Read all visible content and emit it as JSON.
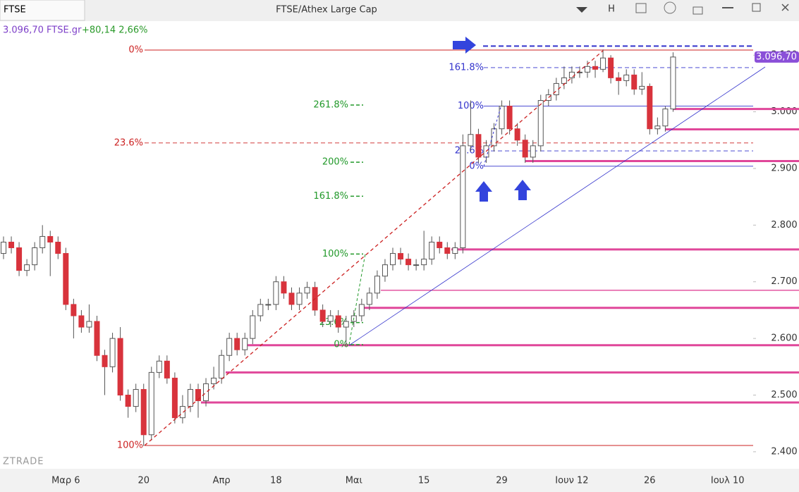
{
  "toolbar": {
    "symbol": "FTSE",
    "title": "FTSE/Athex Large Cap",
    "mode": "H"
  },
  "quote": {
    "price": "3.096,70 FTSE.gr",
    "change": "+80,14 2,66%"
  },
  "watermark": "ZTRADE",
  "chart_data": {
    "type": "candlestick",
    "categories": [
      null,
      null,
      null,
      null,
      null,
      null,
      null,
      null,
      "Μαρ 6",
      null,
      null,
      null,
      null,
      null,
      null,
      null,
      null,
      null,
      "20",
      null,
      null,
      null,
      null,
      null,
      null,
      null,
      null,
      null,
      "Απρ",
      null,
      null,
      null,
      null,
      null,
      null,
      "18",
      null,
      null,
      null,
      null,
      null,
      null,
      null,
      null,
      null,
      "Μαι",
      null,
      null,
      null,
      null,
      null,
      null,
      null,
      null,
      "15",
      null,
      null,
      null,
      null,
      null,
      null,
      null,
      null,
      null,
      "29",
      null,
      null,
      null,
      null,
      null,
      null,
      null,
      null,
      "Ιουν 12",
      null,
      null,
      null,
      null,
      null,
      null,
      null,
      null,
      null,
      "26",
      null,
      null,
      null,
      null,
      null,
      null,
      null,
      null,
      null,
      "Ιουλ 10"
    ],
    "open": [
      2750,
      2770,
      2760,
      2720,
      2730,
      2760,
      2780,
      2770,
      2750,
      2660,
      2640,
      2620,
      2630,
      2570,
      2550,
      2600,
      2500,
      2480,
      2510,
      2430,
      2540,
      2560,
      2530,
      2460,
      2480,
      2510,
      2490,
      2520,
      2530,
      2570,
      2600,
      2580,
      2600,
      2640,
      2660,
      2660,
      2700,
      2680,
      2660,
      2680,
      2690,
      2650,
      2630,
      2640,
      2620,
      2630,
      2640,
      2660,
      2680,
      2710,
      2730,
      2750,
      2740,
      2730,
      2730,
      2740,
      2770,
      2760,
      2750,
      2760,
      2940,
      2960,
      2920,
      2940,
      2970,
      3010,
      2970,
      2950,
      2920,
      2940,
      3020,
      3030,
      3050,
      3060,
      3070,
      3070,
      3080,
      3075,
      3095,
      3060,
      3055,
      3065,
      3040,
      3045,
      2970,
      2975,
      3005,
      null,
      null,
      null,
      null,
      null,
      null,
      null
    ],
    "high": [
      2780,
      2780,
      2770,
      2740,
      2770,
      2800,
      2790,
      2780,
      2760,
      2670,
      2650,
      2660,
      2640,
      2580,
      2610,
      2620,
      2510,
      2520,
      2520,
      2550,
      2570,
      2570,
      2540,
      2500,
      2520,
      2520,
      2530,
      2550,
      2580,
      2610,
      2610,
      2610,
      2650,
      2670,
      2670,
      2710,
      2710,
      2690,
      2690,
      2700,
      2700,
      2660,
      2650,
      2650,
      2640,
      2650,
      2670,
      2690,
      2720,
      2740,
      2760,
      2760,
      2750,
      2740,
      2790,
      2780,
      2780,
      2770,
      2770,
      2960,
      3020,
      2970,
      2950,
      2980,
      3020,
      3020,
      2980,
      2960,
      2950,
      3030,
      3040,
      3060,
      3080,
      3080,
      3080,
      3090,
      3090,
      3110,
      3100,
      3070,
      3075,
      3075,
      3070,
      3050,
      2990,
      3010,
      3105,
      null,
      null,
      null,
      null,
      null,
      null,
      null
    ],
    "low": [
      2740,
      2750,
      2710,
      2710,
      2720,
      2750,
      2710,
      2740,
      2650,
      2600,
      2610,
      2610,
      2560,
      2500,
      2540,
      2490,
      2460,
      2470,
      2410,
      2420,
      2530,
      2520,
      2450,
      2450,
      2470,
      2460,
      2480,
      2510,
      2520,
      2560,
      2570,
      2570,
      2590,
      2630,
      2650,
      2650,
      2670,
      2650,
      2650,
      2670,
      2640,
      2620,
      2620,
      2610,
      2590,
      2620,
      2630,
      2650,
      2670,
      2700,
      2720,
      2730,
      2720,
      2720,
      2720,
      2730,
      2750,
      2740,
      2740,
      2750,
      2930,
      2910,
      2910,
      2930,
      2960,
      2960,
      2940,
      2910,
      2910,
      2930,
      3010,
      3020,
      3040,
      3050,
      3060,
      3060,
      3060,
      3070,
      3050,
      3030,
      3045,
      3030,
      3030,
      2960,
      2960,
      2965,
      3000,
      null,
      null,
      null,
      null,
      null,
      null,
      null
    ],
    "close": [
      2770,
      2760,
      2720,
      2730,
      2760,
      2780,
      2770,
      2750,
      2660,
      2640,
      2620,
      2630,
      2570,
      2550,
      2600,
      2500,
      2480,
      2510,
      2430,
      2540,
      2560,
      2530,
      2460,
      2480,
      2510,
      2490,
      2520,
      2530,
      2570,
      2600,
      2580,
      2600,
      2640,
      2660,
      2660,
      2700,
      2680,
      2660,
      2680,
      2690,
      2650,
      2630,
      2640,
      2620,
      2630,
      2640,
      2660,
      2680,
      2710,
      2730,
      2750,
      2740,
      2730,
      2730,
      2740,
      2770,
      2760,
      2750,
      2760,
      2940,
      2960,
      2920,
      2940,
      2970,
      3010,
      2970,
      2950,
      2920,
      2940,
      3020,
      3030,
      3050,
      3060,
      3070,
      3070,
      3080,
      3075,
      3095,
      3060,
      3055,
      3065,
      3040,
      3045,
      2970,
      2975,
      3005,
      3096.7,
      null,
      null,
      null,
      null,
      null,
      null,
      null
    ],
    "up_color": "#ffffff",
    "down_color": "#d8333c",
    "ylim": [
      2370,
      3160
    ],
    "yticks": [
      {
        "value": 2400,
        "label": "2.400"
      },
      {
        "value": 2500,
        "label": "2.500"
      },
      {
        "value": 2600,
        "label": "2.600"
      },
      {
        "value": 2700,
        "label": "2.700"
      },
      {
        "value": 2800,
        "label": "2.800"
      },
      {
        "value": 2900,
        "label": "2.900"
      },
      {
        "value": 3000,
        "label": "3.000"
      },
      {
        "value": 3100,
        "label": "3.100"
      }
    ],
    "last_price": {
      "value": 3096.7,
      "label": "3.096,70"
    },
    "fib_sets": [
      {
        "color": "#cc2222",
        "levels": [
          {
            "label": "0%",
            "value": 3109
          },
          {
            "label": "23.6%",
            "value": 2945
          },
          {
            "label": "100%",
            "value": 2411
          }
        ]
      },
      {
        "color": "#22992a",
        "levels": [
          {
            "label": "261.8%",
            "value": 3012
          },
          {
            "label": "200%",
            "value": 2911
          },
          {
            "label": "161.8%",
            "value": 2851
          },
          {
            "label": "100%",
            "value": 2749
          },
          {
            "label": "23.6%",
            "value": 2628
          },
          {
            "label": "0%",
            "value": 2589
          }
        ]
      },
      {
        "color": "#3333cc",
        "levels": [
          {
            "label": "161.8%",
            "value": 3078
          },
          {
            "label": "100%",
            "value": 3010
          },
          {
            "label": "23.6%",
            "value": 2931
          },
          {
            "label": "0%",
            "value": 2904
          }
        ]
      }
    ],
    "levels": [
      3005,
      2969,
      2913,
      2757,
      2685,
      2654,
      2588,
      2540,
      2487
    ],
    "target_line": 3116
  }
}
